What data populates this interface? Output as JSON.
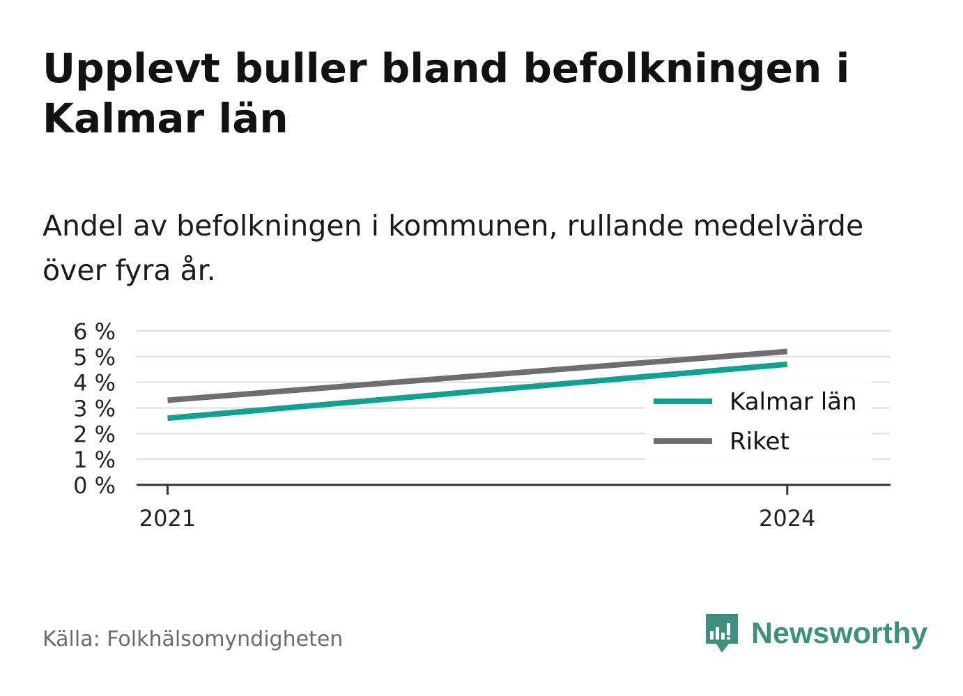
{
  "title": "Upplevt buller bland befolkningen i Kalmar län",
  "subtitle": "Andel av befolkningen i kommunen, rullande medelvärde över fyra år.",
  "source": "Källa: Folkhälsomyndigheten",
  "brand": {
    "name": "Newsworthy",
    "icon": "newsworthy-logo-icon",
    "color": "#3f8f7e"
  },
  "chart_data": {
    "type": "line",
    "title": "Upplevt buller bland befolkningen i Kalmar län",
    "subtitle": "Andel av befolkningen i kommunen, rullande medelvärde över fyra år.",
    "x": [
      2021,
      2024
    ],
    "x_tick_labels": [
      "2021",
      "2024"
    ],
    "xlim": [
      2020.85,
      2024.5
    ],
    "ylim": [
      0,
      6
    ],
    "y_ticks": [
      0,
      1,
      2,
      3,
      4,
      5,
      6
    ],
    "y_tick_labels": [
      "0 %",
      "1 %",
      "2 %",
      "3 %",
      "4 %",
      "5 %",
      "6 %"
    ],
    "grid": true,
    "legend_position": "right",
    "series": [
      {
        "name": "Kalmar län",
        "values": [
          2.6,
          4.7
        ],
        "color": "#12a090"
      },
      {
        "name": "Riket",
        "values": [
          3.3,
          5.2
        ],
        "color": "#6e6d72"
      }
    ]
  }
}
